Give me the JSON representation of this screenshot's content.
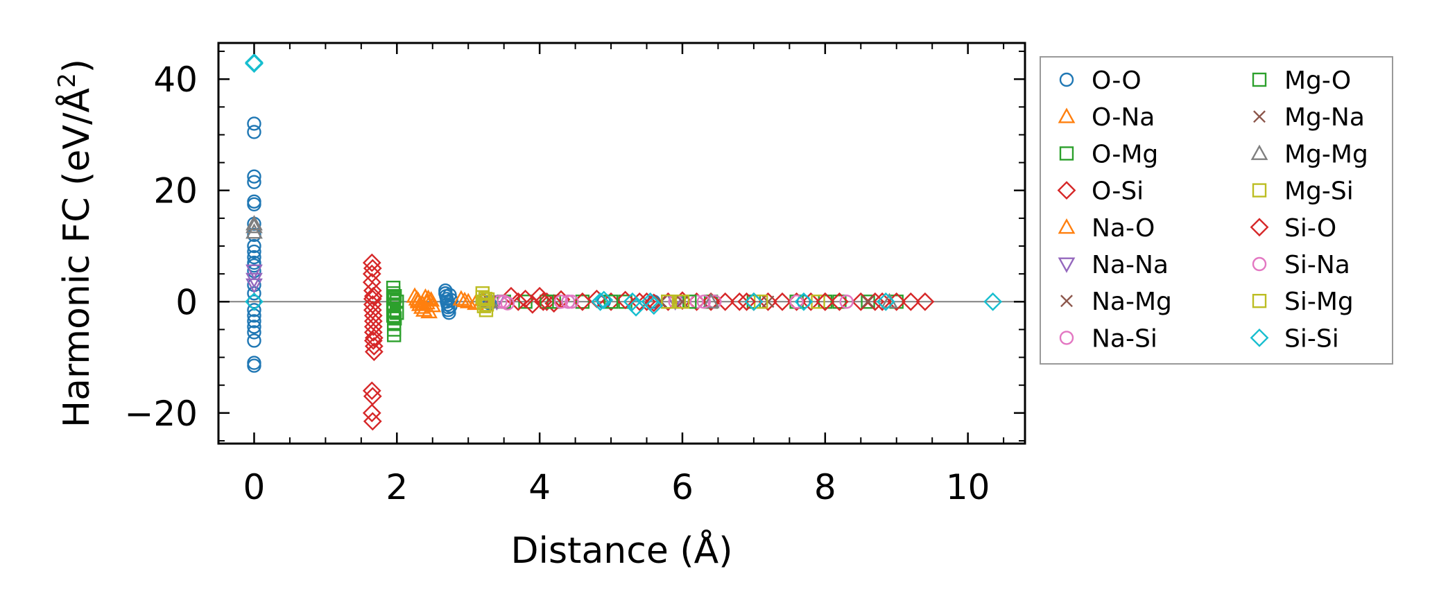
{
  "chart_data": {
    "type": "scatter",
    "title": "",
    "xlabel": "Distance (Å)",
    "ylabel_main": "Harmonic FC (eV/Å",
    "ylabel_sup": "2",
    "ylabel_close": ")",
    "xlim": [
      -0.5,
      10.8
    ],
    "ylim": [
      -25.5,
      46.5
    ],
    "xticks": [
      0,
      2,
      4,
      6,
      8,
      10
    ],
    "yticks": [
      -20,
      0,
      20,
      40
    ],
    "xtick_labels": [
      "0",
      "2",
      "4",
      "6",
      "8",
      "10"
    ],
    "ytick_labels": [
      "−20",
      "0",
      "20",
      "40"
    ],
    "zero_line": true,
    "legend_position": "outside-right",
    "series": [
      {
        "name": "O-O",
        "marker": "circle",
        "color": "#1f77b4",
        "points": [
          [
            0,
            32
          ],
          [
            0,
            30.5
          ],
          [
            0,
            22.5
          ],
          [
            0,
            21.5
          ],
          [
            0,
            18
          ],
          [
            0,
            17.5
          ],
          [
            0,
            14
          ],
          [
            0,
            12
          ],
          [
            0,
            10
          ],
          [
            0,
            9
          ],
          [
            0,
            8
          ],
          [
            0,
            7
          ],
          [
            0,
            6.5
          ],
          [
            0,
            5.5
          ],
          [
            0,
            3
          ],
          [
            0,
            1.5
          ],
          [
            0,
            0
          ],
          [
            0,
            -1.5
          ],
          [
            0,
            -2.5
          ],
          [
            0,
            -3.5
          ],
          [
            0,
            -4.5
          ],
          [
            0,
            -5.5
          ],
          [
            0,
            -7
          ],
          [
            0,
            -11
          ],
          [
            0,
            -11.5
          ],
          [
            2.68,
            2
          ],
          [
            2.68,
            1.5
          ],
          [
            2.69,
            1
          ],
          [
            2.7,
            0.5
          ],
          [
            2.7,
            0
          ],
          [
            2.71,
            -0.5
          ],
          [
            2.72,
            -1
          ],
          [
            2.72,
            -1.5
          ],
          [
            2.73,
            -2
          ],
          [
            2.74,
            1.2
          ],
          [
            2.75,
            -0.8
          ],
          [
            2.76,
            0.3
          ],
          [
            3.2,
            0.2
          ],
          [
            3.3,
            -0.3
          ],
          [
            4.4,
            0
          ],
          [
            4.9,
            0
          ],
          [
            5.6,
            0
          ],
          [
            6.4,
            0
          ],
          [
            7.7,
            0
          ]
        ]
      },
      {
        "name": "O-Na",
        "marker": "triangle-up",
        "color": "#ff7f0e",
        "points": [
          [
            2.25,
            1
          ],
          [
            2.28,
            0.5
          ],
          [
            2.3,
            0
          ],
          [
            2.32,
            -0.5
          ],
          [
            2.35,
            -1
          ],
          [
            2.38,
            -1.5
          ],
          [
            2.4,
            0.8
          ],
          [
            2.42,
            -0.2
          ],
          [
            2.45,
            -1.8
          ],
          [
            2.48,
            0.3
          ],
          [
            2.5,
            -0.7
          ],
          [
            2.9,
            0.5
          ],
          [
            3.0,
            0
          ],
          [
            3.1,
            -0.3
          ],
          [
            3.2,
            0.4
          ]
        ]
      },
      {
        "name": "O-Mg",
        "marker": "square",
        "color": "#2ca02c",
        "points": [
          [
            1.95,
            2.5
          ],
          [
            1.95,
            1.5
          ],
          [
            1.95,
            0.5
          ],
          [
            1.95,
            -0.5
          ],
          [
            1.95,
            -1.5
          ],
          [
            1.95,
            -2.5
          ],
          [
            1.96,
            -4
          ],
          [
            1.96,
            -5
          ],
          [
            1.96,
            -6
          ],
          [
            1.97,
            1
          ],
          [
            1.97,
            -3
          ],
          [
            2.0,
            0
          ],
          [
            2.0,
            -2
          ],
          [
            3.5,
            0
          ],
          [
            3.8,
            0
          ],
          [
            4.2,
            0
          ],
          [
            4.6,
            0
          ],
          [
            5.2,
            0
          ],
          [
            5.8,
            0
          ],
          [
            6.4,
            0
          ],
          [
            7.0,
            0
          ],
          [
            7.6,
            0
          ],
          [
            8.2,
            0
          ],
          [
            8.6,
            0
          ],
          [
            9.0,
            0
          ]
        ]
      },
      {
        "name": "O-Si",
        "marker": "diamond",
        "color": "#d62728",
        "points": [
          [
            1.65,
            7
          ],
          [
            1.65,
            5
          ],
          [
            1.65,
            3.5
          ],
          [
            1.66,
            2
          ],
          [
            1.66,
            0.5
          ],
          [
            1.66,
            -0.5
          ],
          [
            1.66,
            -1.5
          ],
          [
            1.67,
            -2.5
          ],
          [
            1.67,
            -3.5
          ],
          [
            1.67,
            -4.5
          ],
          [
            1.67,
            -5.5
          ],
          [
            1.68,
            -6.5
          ],
          [
            1.68,
            -8
          ],
          [
            1.68,
            -9
          ],
          [
            1.65,
            -16
          ],
          [
            1.66,
            -17
          ],
          [
            1.65,
            -20
          ],
          [
            1.66,
            -21.5
          ],
          [
            3.6,
            1
          ],
          [
            3.7,
            0
          ],
          [
            3.8,
            0.5
          ],
          [
            3.9,
            -0.5
          ],
          [
            4.0,
            1
          ],
          [
            4.1,
            0
          ],
          [
            4.2,
            -0.3
          ],
          [
            4.3,
            0.4
          ],
          [
            4.6,
            0
          ],
          [
            4.8,
            0.5
          ],
          [
            5.0,
            0
          ],
          [
            5.2,
            0.3
          ],
          [
            5.4,
            0
          ],
          [
            5.6,
            -0.2
          ],
          [
            5.8,
            0
          ],
          [
            6.0,
            0.2
          ],
          [
            6.2,
            0
          ],
          [
            6.4,
            0
          ],
          [
            6.6,
            0
          ],
          [
            6.8,
            0
          ],
          [
            7.0,
            0
          ],
          [
            7.2,
            0
          ],
          [
            7.4,
            0
          ],
          [
            7.6,
            0
          ],
          [
            7.8,
            0
          ],
          [
            8.0,
            0
          ],
          [
            8.2,
            0
          ],
          [
            8.5,
            0
          ],
          [
            8.7,
            0
          ],
          [
            8.8,
            0
          ],
          [
            9.0,
            0
          ],
          [
            9.2,
            0
          ],
          [
            9.4,
            0
          ]
        ]
      },
      {
        "name": "Na-O",
        "marker": "triangle-up",
        "color": "#ff7f0e",
        "points": [
          [
            2.3,
            0.2
          ],
          [
            2.36,
            -0.4
          ],
          [
            2.44,
            0.6
          ],
          [
            2.95,
            0.2
          ]
        ]
      },
      {
        "name": "Na-Na",
        "marker": "triangle-down",
        "color": "#9467bd",
        "points": [
          [
            0,
            5.5
          ],
          [
            0,
            4
          ],
          [
            0,
            3
          ],
          [
            3.4,
            0
          ],
          [
            5.9,
            0
          ]
        ]
      },
      {
        "name": "Na-Mg",
        "marker": "x",
        "color": "#8c564b",
        "points": [
          [
            3.25,
            0
          ],
          [
            5.7,
            0
          ],
          [
            7.2,
            0
          ]
        ]
      },
      {
        "name": "Na-Si",
        "marker": "circle",
        "color": "#e377c2",
        "points": [
          [
            3.45,
            0
          ],
          [
            3.55,
            -0.3
          ],
          [
            4.3,
            0
          ],
          [
            4.45,
            0
          ],
          [
            5.9,
            0
          ],
          [
            6.2,
            0
          ],
          [
            6.45,
            0
          ],
          [
            7.6,
            0
          ],
          [
            8.3,
            0
          ]
        ]
      },
      {
        "name": "Mg-O",
        "marker": "square",
        "color": "#2ca02c",
        "points": [
          [
            1.95,
            0.8
          ],
          [
            1.96,
            -0.8
          ],
          [
            4.1,
            0
          ],
          [
            5.0,
            0
          ],
          [
            6.1,
            0
          ],
          [
            8.0,
            0
          ]
        ]
      },
      {
        "name": "Mg-Na",
        "marker": "x",
        "color": "#8c564b",
        "points": [
          [
            3.3,
            0
          ],
          [
            6.0,
            0
          ],
          [
            8.6,
            0
          ]
        ]
      },
      {
        "name": "Mg-Mg",
        "marker": "triangle-up",
        "color": "#7f7f7f",
        "points": [
          [
            0,
            14
          ],
          [
            0,
            13.5
          ],
          [
            0,
            12.5
          ],
          [
            3.3,
            0
          ],
          [
            6.4,
            0
          ],
          [
            8.9,
            0
          ]
        ]
      },
      {
        "name": "Mg-Si",
        "marker": "square",
        "color": "#bcbd22",
        "points": [
          [
            3.2,
            1.5
          ],
          [
            3.2,
            0.8
          ],
          [
            3.22,
            0
          ],
          [
            3.22,
            -0.8
          ],
          [
            3.25,
            -1.5
          ],
          [
            3.27,
            0.4
          ],
          [
            5.8,
            0
          ],
          [
            6.0,
            0
          ],
          [
            7.1,
            0
          ],
          [
            7.9,
            0
          ]
        ]
      },
      {
        "name": "Si-O",
        "marker": "diamond",
        "color": "#d62728",
        "points": [
          [
            1.66,
            6
          ],
          [
            1.67,
            1
          ],
          [
            1.67,
            -7
          ],
          [
            4.05,
            0
          ],
          [
            5.5,
            0
          ],
          [
            6.9,
            0
          ],
          [
            8.0,
            0
          ]
        ]
      },
      {
        "name": "Si-Na",
        "marker": "circle",
        "color": "#e377c2",
        "points": [
          [
            3.5,
            0
          ],
          [
            4.4,
            0
          ],
          [
            6.3,
            0
          ],
          [
            8.3,
            0
          ]
        ]
      },
      {
        "name": "Si-Mg",
        "marker": "square",
        "color": "#bcbd22",
        "points": [
          [
            3.24,
            0.5
          ],
          [
            3.26,
            -0.5
          ],
          [
            5.95,
            0
          ]
        ]
      },
      {
        "name": "Si-Si",
        "marker": "diamond",
        "color": "#17becf",
        "points": [
          [
            0,
            43
          ],
          [
            0,
            42.8
          ],
          [
            0,
            0
          ],
          [
            4.85,
            0
          ],
          [
            4.9,
            0.3
          ],
          [
            5.3,
            0
          ],
          [
            5.35,
            -1
          ],
          [
            5.55,
            0
          ],
          [
            5.6,
            -0.7
          ],
          [
            7.0,
            0
          ],
          [
            7.7,
            0
          ],
          [
            8.85,
            0
          ],
          [
            10.35,
            0
          ]
        ]
      }
    ]
  }
}
